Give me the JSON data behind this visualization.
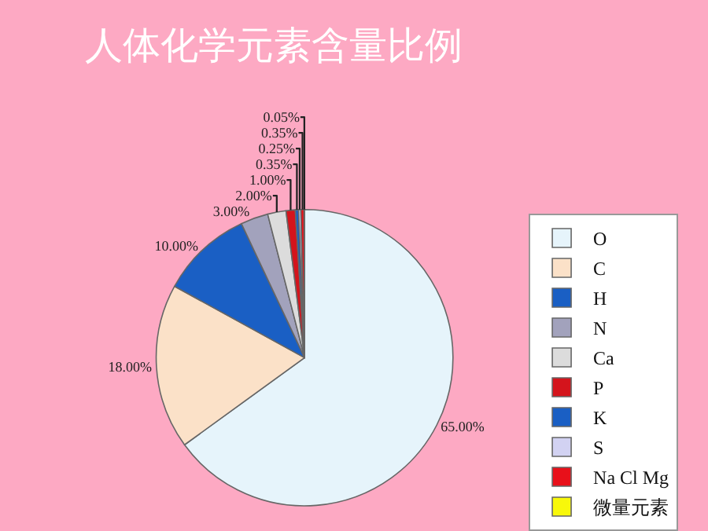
{
  "chart_data": {
    "type": "pie",
    "title": "人体化学元素含量比例",
    "categories": [
      "O",
      "C",
      "H",
      "N",
      "Ca",
      "P",
      "K",
      "S",
      "Na Cl Mg",
      "微量元素"
    ],
    "values": [
      65,
      18,
      10,
      3,
      2,
      1,
      0.35,
      0.25,
      0.35,
      0.05
    ],
    "value_labels": [
      "65.00%",
      "18.00%",
      "10.00%",
      "3.00%",
      "2.00%",
      "1.00%",
      "0.35%",
      "0.25%",
      "0.35%",
      "0.05%"
    ],
    "colors": [
      "#e6f4fb",
      "#fbe1c8",
      "#1a5fc4",
      "#a2a2bc",
      "#dcdcdc",
      "#d4141c",
      "#1a5fc4",
      "#d2d2f2",
      "#e8101a",
      "#f8f80a"
    ],
    "legend": "right"
  }
}
